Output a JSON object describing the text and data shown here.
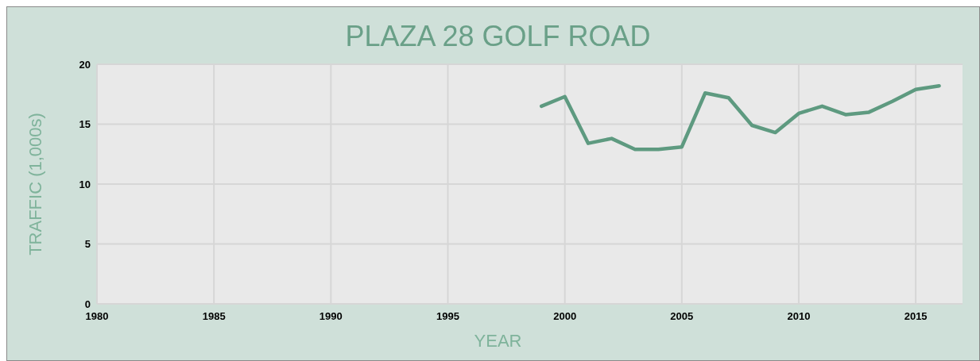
{
  "chart_data": {
    "type": "line",
    "title": "PLAZA 28 GOLF ROAD",
    "xlabel": "YEAR",
    "ylabel": "TRAFFIC (1,000s)",
    "x": [
      1999,
      2000,
      2001,
      2002,
      2003,
      2004,
      2005,
      2006,
      2007,
      2008,
      2009,
      2010,
      2011,
      2012,
      2013,
      2014,
      2015,
      2016
    ],
    "series": [
      {
        "color": "#5e9a80",
        "values": [
          16.5,
          17.3,
          13.4,
          13.8,
          12.9,
          12.9,
          13.1,
          17.6,
          17.2,
          14.9,
          14.3,
          15.9,
          16.5,
          15.8,
          16.0,
          16.9,
          17.9,
          18.2
        ]
      }
    ],
    "xlim": [
      1980,
      2017
    ],
    "xticks": [
      1980,
      1985,
      1990,
      1995,
      2000,
      2005,
      2010,
      2015
    ],
    "ylim": [
      0,
      20
    ],
    "yticks": [
      0,
      5,
      10,
      15,
      20
    ],
    "grid": true,
    "marker": "none",
    "line_style": "solid"
  }
}
